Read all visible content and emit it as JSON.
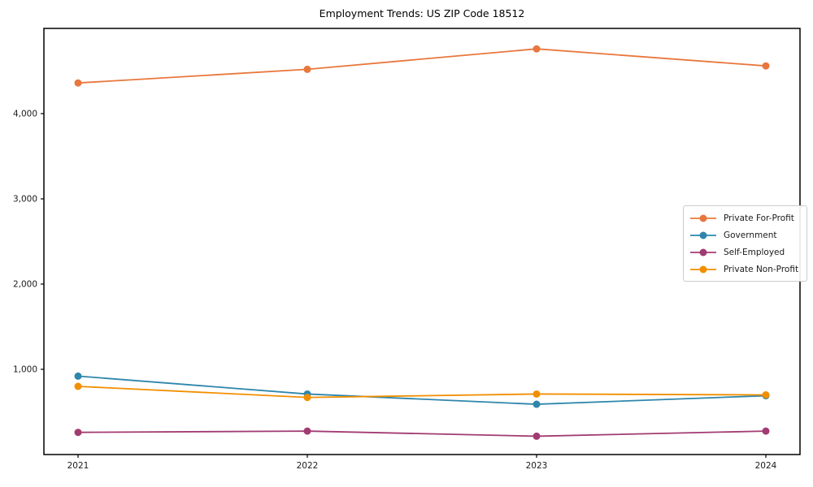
{
  "chart_data": {
    "type": "line",
    "title": "Employment Trends: US ZIP Code 18512",
    "x_labels": [
      "2021",
      "2022",
      "2023",
      "2024"
    ],
    "y_ticks": [
      1000,
      2000,
      3000,
      4000
    ],
    "y_tick_labels": [
      "1,000",
      "2,000",
      "3,000",
      "4,000"
    ],
    "ylim": [
      0,
      5000
    ],
    "grid": false,
    "legend_position": "center right",
    "series": [
      {
        "name": "Private For-Profit",
        "color": "#E8773D",
        "values": [
          4360,
          4520,
          4760,
          4560
        ]
      },
      {
        "name": "Government",
        "color": "#2E86AB",
        "values": [
          920,
          710,
          590,
          690
        ]
      },
      {
        "name": "Self-Employed",
        "color": "#A23B72",
        "values": [
          260,
          275,
          215,
          275
        ]
      },
      {
        "name": "Private Non-Profit",
        "color": "#F18F01",
        "values": [
          800,
          670,
          710,
          700
        ]
      }
    ]
  }
}
